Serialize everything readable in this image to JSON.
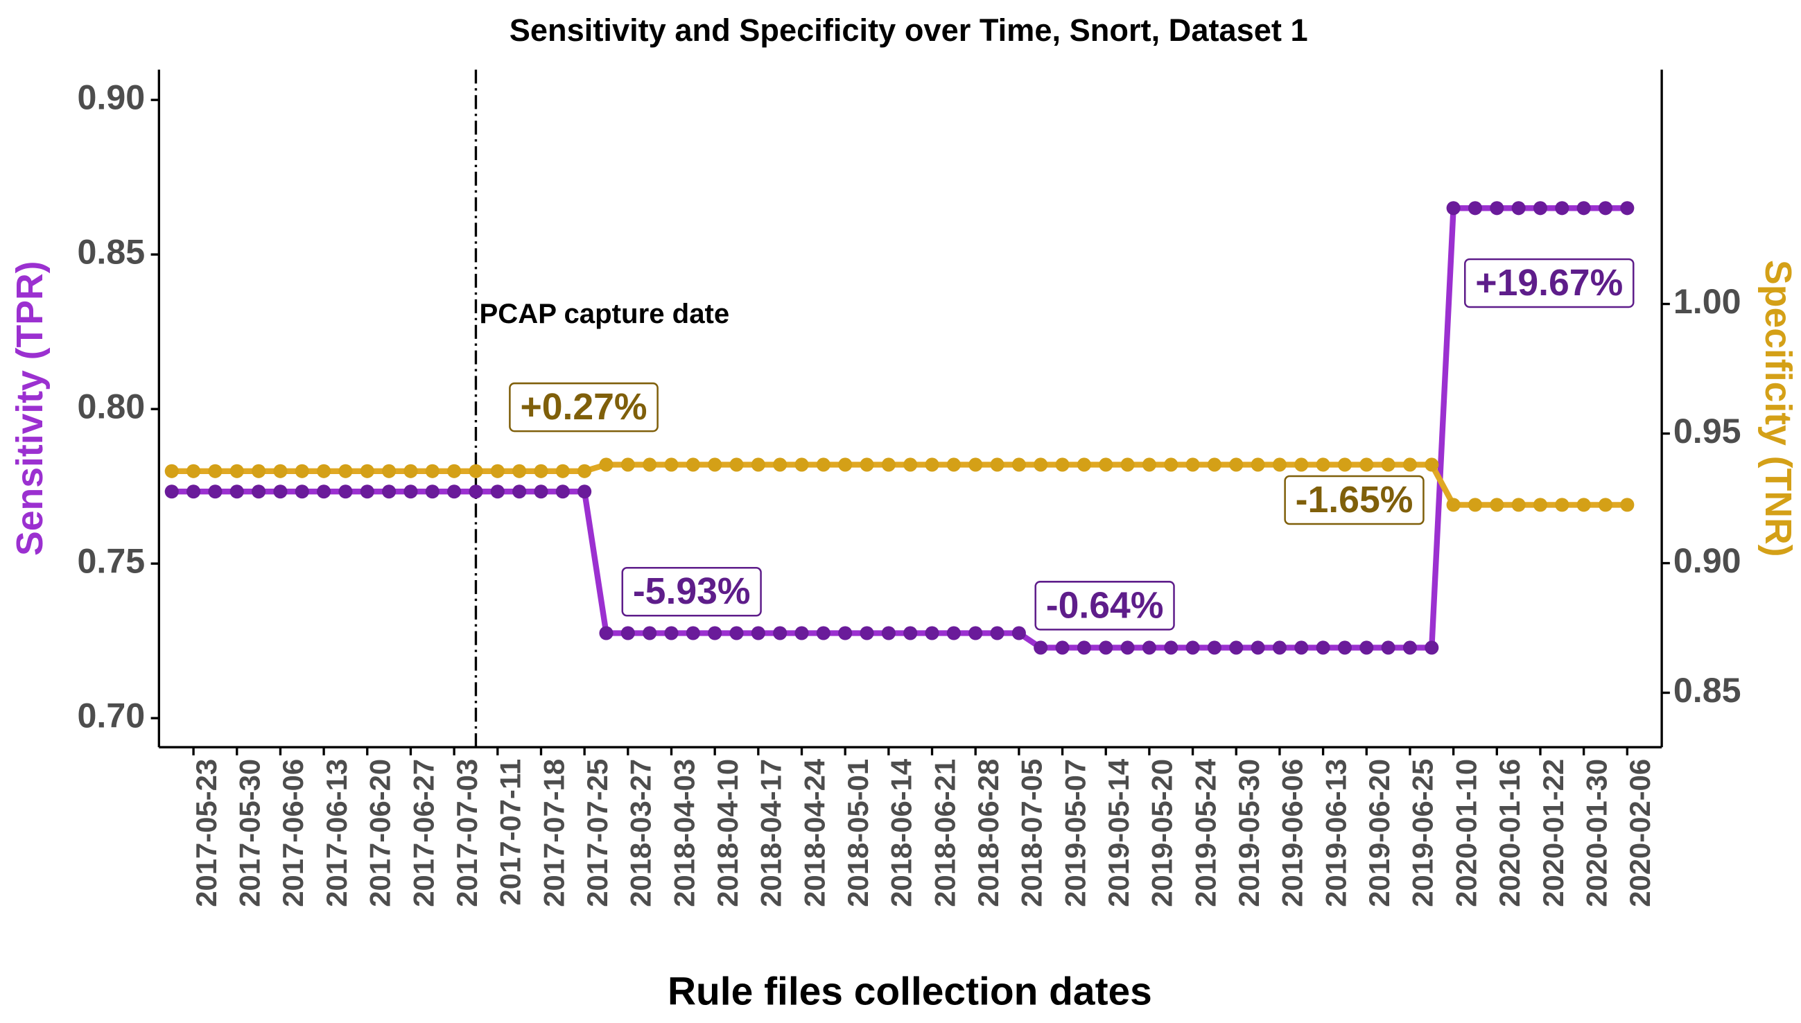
{
  "chart_data": {
    "type": "line",
    "title": "Sensitivity and Specificity over Time, Snort, Dataset 1",
    "xlabel": "Rule files collection dates",
    "ylabel": "Sensitivity (TPR)",
    "y2label": "Specificity (TNR)",
    "categories": [
      null,
      "2017-05-23",
      null,
      "2017-05-30",
      null,
      "2017-06-06",
      null,
      "2017-06-13",
      null,
      "2017-06-20",
      null,
      "2017-06-27",
      null,
      "2017-07-03",
      null,
      "2017-07-11",
      null,
      "2017-07-18",
      null,
      "2017-07-25",
      null,
      "2018-03-27",
      null,
      "2018-04-03",
      null,
      "2018-04-10",
      null,
      "2018-04-17",
      null,
      "2018-04-24",
      null,
      "2018-05-01",
      null,
      "2018-06-14",
      null,
      "2018-06-21",
      null,
      "2018-06-28",
      null,
      "2018-07-05",
      null,
      "2019-05-07",
      null,
      "2019-05-14",
      null,
      "2019-05-20",
      null,
      "2019-05-24",
      null,
      "2019-05-30",
      null,
      "2019-06-06",
      null,
      "2019-06-13",
      null,
      "2019-06-20",
      null,
      "2019-06-25",
      null,
      "2020-01-10",
      null,
      "2020-01-16",
      null,
      "2020-01-22",
      null,
      "2020-01-30",
      null,
      "2020-02-06"
    ],
    "series": [
      {
        "color": "#9b30d0",
        "point_color": "#6a1b9a",
        "axis": "y",
        "values": [
          0.7733,
          0.7733,
          0.7733,
          0.7733,
          0.7733,
          0.7733,
          0.7733,
          0.7733,
          0.7733,
          0.7733,
          0.7733,
          0.7733,
          0.7733,
          0.7733,
          0.7733,
          0.7733,
          0.7733,
          0.7733,
          0.7733,
          0.7733,
          0.7275,
          0.7275,
          0.7275,
          0.7275,
          0.7275,
          0.7275,
          0.7275,
          0.7275,
          0.7275,
          0.7275,
          0.7275,
          0.7275,
          0.7275,
          0.7275,
          0.7275,
          0.7275,
          0.7275,
          0.7275,
          0.7275,
          0.7275,
          0.7228,
          0.7228,
          0.7228,
          0.7228,
          0.7228,
          0.7228,
          0.7228,
          0.7228,
          0.7228,
          0.7228,
          0.7228,
          0.7228,
          0.7228,
          0.7228,
          0.7228,
          0.7228,
          0.7228,
          0.7228,
          0.7228,
          0.865,
          0.865,
          0.865,
          0.865,
          0.865,
          0.865,
          0.865,
          0.865,
          0.865
        ]
      },
      {
        "color": "#e0a823",
        "point_color": "#d4a017",
        "axis": "y2",
        "values": [
          0.9355,
          0.9355,
          0.9355,
          0.9355,
          0.9355,
          0.9355,
          0.9355,
          0.9355,
          0.9355,
          0.9355,
          0.9355,
          0.9355,
          0.9355,
          0.9355,
          0.9355,
          0.9355,
          0.9355,
          0.9355,
          0.9355,
          0.9355,
          0.938,
          0.938,
          0.938,
          0.938,
          0.938,
          0.938,
          0.938,
          0.938,
          0.938,
          0.938,
          0.938,
          0.938,
          0.938,
          0.938,
          0.938,
          0.938,
          0.938,
          0.938,
          0.938,
          0.938,
          0.938,
          0.938,
          0.938,
          0.938,
          0.938,
          0.938,
          0.938,
          0.938,
          0.938,
          0.938,
          0.938,
          0.938,
          0.938,
          0.938,
          0.938,
          0.938,
          0.938,
          0.938,
          0.938,
          0.9225,
          0.9225,
          0.9225,
          0.9225,
          0.9225,
          0.9225,
          0.9225,
          0.9225,
          0.9225
        ]
      }
    ],
    "ylim": [
      0.6906,
      0.9098
    ],
    "yticks": [
      {
        "value": 0.7,
        "label": "0.70"
      },
      {
        "value": 0.75,
        "label": "0.75"
      },
      {
        "value": 0.8,
        "label": "0.80"
      },
      {
        "value": 0.85,
        "label": "0.85"
      },
      {
        "value": 0.9,
        "label": "0.90"
      }
    ],
    "y2lim": [
      0.829,
      1.0904
    ],
    "y2ticks": [
      {
        "value": 0.85,
        "label": "0.85"
      },
      {
        "value": 0.9,
        "label": "0.90"
      },
      {
        "value": 0.95,
        "label": "0.95"
      },
      {
        "value": 1.0,
        "label": "1.00"
      }
    ],
    "vline": {
      "label": "PCAP capture date"
    },
    "annotations": [
      {
        "text": "+0.27%",
        "color": "#7f5f0a"
      },
      {
        "text": "-5.93%",
        "color": "#5e1d8a"
      },
      {
        "text": "-0.64%",
        "color": "#5e1d8a"
      },
      {
        "text": "-1.65%",
        "color": "#7f5f0a"
      },
      {
        "text": "+19.67%",
        "color": "#5e1d8a"
      }
    ]
  }
}
